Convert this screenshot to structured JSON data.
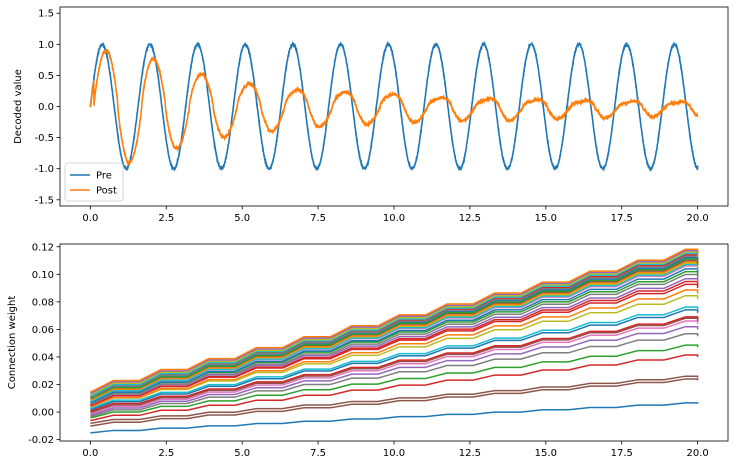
{
  "chart_data": [
    {
      "type": "line",
      "ylabel": "Decoded value",
      "xlim": [
        -1.0,
        21.0
      ],
      "ylim": [
        -1.6,
        1.6
      ],
      "xticks": [
        "0.0",
        "2.5",
        "5.0",
        "7.5",
        "10.0",
        "12.5",
        "15.0",
        "17.5",
        "20.0"
      ],
      "yticks": [
        "-1.5",
        "-1.0",
        "-0.5",
        "0.0",
        "0.5",
        "1.0",
        "1.5"
      ],
      "legend_position": "lower-left",
      "series": [
        {
          "name": "Pre",
          "color": "#1f77b4",
          "description": "sine wave, amplitude ~1.0, period ~1.57",
          "x": [
            0.0,
            0.39,
            0.79,
            1.18,
            1.57,
            1.96,
            2.36,
            2.75,
            3.14,
            3.53,
            3.93,
            4.32,
            4.71,
            5.11,
            5.5,
            5.89,
            6.28,
            6.68,
            7.07,
            7.46,
            7.85,
            8.25,
            8.64,
            9.03,
            9.42,
            9.82,
            10.21,
            10.6,
            11.0,
            11.39,
            11.78,
            12.17,
            12.57,
            12.96,
            13.35,
            13.74,
            14.14,
            14.53,
            14.92,
            15.32,
            15.71,
            16.1,
            16.49,
            16.89,
            17.28,
            17.67,
            18.06,
            18.46,
            18.85,
            19.24,
            19.63,
            20.0
          ],
          "y": [
            0.0,
            1.0,
            0.0,
            -1.0,
            0.0,
            1.0,
            0.0,
            -1.0,
            0.0,
            1.0,
            0.0,
            -1.0,
            0.0,
            1.0,
            0.0,
            -1.0,
            0.0,
            1.0,
            0.0,
            -1.0,
            0.0,
            1.0,
            0.0,
            -1.0,
            0.0,
            1.0,
            0.0,
            -1.0,
            0.0,
            1.0,
            0.0,
            -1.0,
            0.0,
            1.0,
            0.0,
            -1.0,
            0.0,
            1.0,
            0.0,
            -1.0,
            0.0,
            1.0,
            0.0,
            -1.0,
            0.0,
            1.0,
            0.0,
            -1.0,
            0.0,
            1.0,
            0.0,
            -0.95
          ]
        },
        {
          "name": "Post",
          "color": "#ff7f0e",
          "description": "damped sine wave following Pre",
          "x": [
            0.0,
            0.39,
            0.79,
            1.18,
            1.57,
            1.96,
            2.36,
            2.75,
            3.14,
            3.53,
            3.93,
            4.32,
            4.71,
            5.11,
            5.5,
            5.89,
            6.28,
            6.68,
            7.07,
            7.46,
            7.85,
            8.25,
            8.64,
            9.03,
            9.42,
            9.82,
            10.21,
            10.6,
            11.0,
            11.39,
            11.78,
            12.17,
            12.57,
            12.96,
            13.35,
            13.74,
            14.14,
            14.53,
            14.92,
            15.32,
            15.71,
            16.1,
            16.49,
            16.89,
            17.28,
            17.67,
            18.06,
            18.46,
            18.85,
            19.24,
            19.63,
            20.0
          ],
          "y": [
            0.0,
            0.9,
            0.0,
            -0.92,
            0.0,
            0.78,
            0.0,
            -0.7,
            0.0,
            0.52,
            0.0,
            -0.52,
            0.0,
            0.35,
            0.0,
            -0.42,
            0.0,
            0.25,
            0.0,
            -0.35,
            0.0,
            0.22,
            0.0,
            -0.3,
            0.0,
            0.18,
            0.0,
            -0.28,
            0.0,
            0.12,
            0.0,
            -0.25,
            0.0,
            0.1,
            0.0,
            -0.25,
            0.0,
            0.08,
            0.0,
            -0.22,
            0.0,
            0.07,
            0.0,
            -0.2,
            0.0,
            0.06,
            0.0,
            -0.18,
            0.0,
            0.05,
            0.0,
            -0.17
          ]
        }
      ]
    },
    {
      "type": "line",
      "ylabel": "Connection weight",
      "xlim": [
        -1.0,
        21.0
      ],
      "ylim": [
        -0.021,
        0.122
      ],
      "xticks": [
        "0.0",
        "2.5",
        "5.0",
        "7.5",
        "10.0",
        "12.5",
        "15.0",
        "17.5",
        "20.0"
      ],
      "yticks": [
        "-0.02",
        "0.00",
        "0.02",
        "0.04",
        "0.06",
        "0.08",
        "0.10",
        "0.12"
      ],
      "series_description": "many staircase lines rising roughly linearly, steps every ~1.57 s",
      "series": [
        {
          "color": "#1f77b4",
          "start": -0.015,
          "end": 0.006
        },
        {
          "color": "#8c564b",
          "start": -0.01,
          "end": 0.023
        },
        {
          "color": "#8c564b",
          "start": -0.008,
          "end": 0.025
        },
        {
          "color": "#d62728",
          "start": -0.006,
          "end": 0.04
        },
        {
          "color": "#2ca02c",
          "start": -0.004,
          "end": 0.047
        },
        {
          "color": "#7f7f7f",
          "start": -0.003,
          "end": 0.055
        },
        {
          "color": "#9467bd",
          "start": -0.002,
          "end": 0.06
        },
        {
          "color": "#e377c2",
          "start": -0.001,
          "end": 0.064
        },
        {
          "color": "#8c564b",
          "start": 0.0,
          "end": 0.066
        },
        {
          "color": "#d62728",
          "start": 0.001,
          "end": 0.067
        },
        {
          "color": "#1f77b4",
          "start": 0.002,
          "end": 0.072
        },
        {
          "color": "#17becf",
          "start": 0.003,
          "end": 0.074
        },
        {
          "color": "#bcbd22",
          "start": 0.004,
          "end": 0.082
        },
        {
          "color": "#ff7f0e",
          "start": 0.004,
          "end": 0.086
        },
        {
          "color": "#d62728",
          "start": 0.005,
          "end": 0.09
        },
        {
          "color": "#d62728",
          "start": 0.005,
          "end": 0.092
        },
        {
          "color": "#9467bd",
          "start": 0.006,
          "end": 0.094
        },
        {
          "color": "#7f7f7f",
          "start": 0.006,
          "end": 0.097
        },
        {
          "color": "#2ca02c",
          "start": 0.007,
          "end": 0.099
        },
        {
          "color": "#1f77b4",
          "start": 0.007,
          "end": 0.101
        },
        {
          "color": "#e377c2",
          "start": 0.008,
          "end": 0.103
        },
        {
          "color": "#17becf",
          "start": 0.008,
          "end": 0.104
        },
        {
          "color": "#bcbd22",
          "start": 0.009,
          "end": 0.105
        },
        {
          "color": "#ff7f0e",
          "start": 0.009,
          "end": 0.106
        },
        {
          "color": "#8c564b",
          "start": 0.01,
          "end": 0.107
        },
        {
          "color": "#2ca02c",
          "start": 0.01,
          "end": 0.108
        },
        {
          "color": "#1f77b4",
          "start": 0.011,
          "end": 0.109
        },
        {
          "color": "#7f7f7f",
          "start": 0.011,
          "end": 0.11
        },
        {
          "color": "#d62728",
          "start": 0.012,
          "end": 0.111
        },
        {
          "color": "#17becf",
          "start": 0.012,
          "end": 0.112
        },
        {
          "color": "#bcbd22",
          "start": 0.013,
          "end": 0.113
        },
        {
          "color": "#9467bd",
          "start": 0.014,
          "end": 0.114
        },
        {
          "color": "#ff7f0e",
          "start": 0.015,
          "end": 0.115
        }
      ]
    }
  ]
}
